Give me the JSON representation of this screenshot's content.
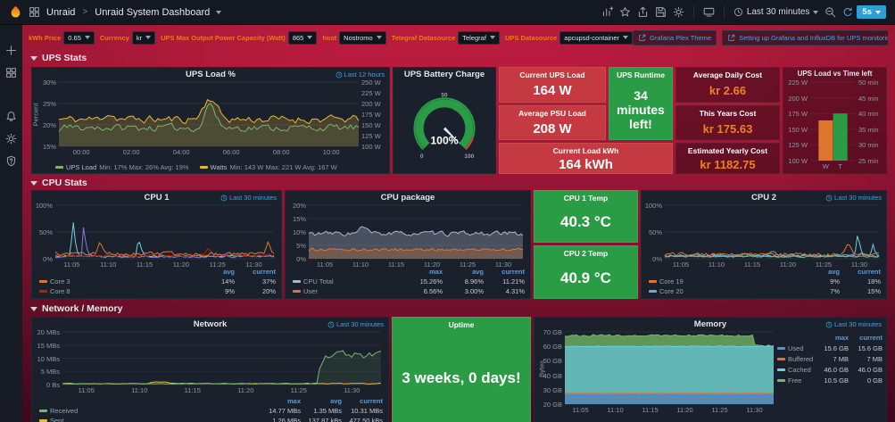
{
  "topbar": {
    "breadcrumb_folder": "Unraid",
    "separator": ">",
    "breadcrumb_title": "Unraid System Dashboard",
    "time_range": "Last 30 minutes",
    "refresh_interval": "5s"
  },
  "variables": [
    {
      "label": "kWh Price",
      "value": "0.65"
    },
    {
      "label": "Currency",
      "value": "kr"
    },
    {
      "label": "UPS Max Output Power Capacity (Watt)",
      "value": "865"
    },
    {
      "label": "host",
      "value": "Nostromo"
    },
    {
      "label": "Telegraf Datasource",
      "value": "Telegraf"
    },
    {
      "label": "UPS Datasource",
      "value": "apcupsd-container"
    }
  ],
  "links": [
    {
      "label": "Grafana Plex Theme"
    },
    {
      "label": "Setting up Grafana and InfluxDB for UPS monitoring on unRAID"
    }
  ],
  "rows": [
    {
      "title": "UPS Stats"
    },
    {
      "title": "CPU Stats"
    },
    {
      "title": "Network / Memory"
    }
  ],
  "stats": {
    "current_ups_load": {
      "title": "Current UPS Load",
      "value": "164 W"
    },
    "average_psu_load": {
      "title": "Average PSU Load",
      "value": "208 W"
    },
    "current_load_kwh": {
      "title": "Current Load kWh",
      "value": "164 kWh"
    },
    "ups_runtime": {
      "title": "UPS Runtime",
      "value": "34 minutes left!"
    },
    "average_daily_cost": {
      "title": "Average Daily Cost",
      "value": "kr 2.66"
    },
    "this_years_cost": {
      "title": "This Years Cost",
      "value": "kr 175.63"
    },
    "estimated_yearly_cost": {
      "title": "Estimated Yearly Cost",
      "value": "kr 1182.75"
    },
    "cpu1_temp": {
      "title": "CPU 1 Temp",
      "value": "40.3 °C"
    },
    "cpu2_temp": {
      "title": "CPU 2 Temp",
      "value": "40.9 °C"
    },
    "uptime": {
      "title": "Uptime",
      "value": "3 weeks, 0 days!"
    }
  },
  "chart_data": [
    {
      "id": "ups-load",
      "type": "line",
      "title": "UPS Load %",
      "time_override": "Last 12 hours",
      "ylabel": "Percent",
      "y_left_ticks": [
        "30%",
        "25%",
        "20%",
        "15%"
      ],
      "y_right_ticks": [
        "250 W",
        "225 W",
        "200 W",
        "175 W",
        "150 W",
        "125 W",
        "100 W"
      ],
      "x_ticks": [
        "00:00",
        "02:00",
        "04:00",
        "06:00",
        "08:00",
        "10:00"
      ],
      "legend_style": "inline",
      "series": [
        {
          "name": "UPS Load",
          "color": "#7eb26d",
          "stats": "Min: 17% Max: 26% Avg: 19%"
        },
        {
          "name": "Watts",
          "color": "#eab839",
          "stats": "Min: 143 W Max: 221 W Avg: 167 W"
        }
      ]
    },
    {
      "id": "ups-gauge",
      "type": "gauge",
      "title": "UPS Battery Charge",
      "value": "100%",
      "ticks": [
        "0",
        "50",
        "100"
      ],
      "value_color": "#2a9c46"
    },
    {
      "id": "ups-bars",
      "type": "bar",
      "title": "UPS Load vs Time left",
      "y_left_ticks": [
        "225 W",
        "200 W",
        "175 W",
        "150 W",
        "125 W",
        "100 W"
      ],
      "y_right_ticks": [
        "50 min",
        "45 min",
        "40 min",
        "35 min",
        "30 min",
        "25 min"
      ],
      "bars": [
        {
          "label": "W",
          "value": 164,
          "unit": "W",
          "axis_min": 100,
          "axis_max": 225,
          "color": "#e0752d"
        },
        {
          "label": "T",
          "value": 40,
          "unit": "min",
          "axis_min": 25,
          "axis_max": 50,
          "color": "#2a9c46"
        }
      ]
    },
    {
      "id": "cpu1",
      "type": "line",
      "title": "CPU 1",
      "time_override": "Last 30 minutes",
      "y_left_ticks": [
        "100%",
        "50%",
        "0%"
      ],
      "x_ticks": [
        "11:05",
        "11:10",
        "11:15",
        "11:20",
        "11:25",
        "11:30"
      ],
      "legend_cols": [
        "avg",
        "current"
      ],
      "series": [
        {
          "name": "Core 3",
          "color": "#e0752d",
          "values": [
            "14%",
            "37%"
          ]
        },
        {
          "name": "Core 8",
          "color": "#bf1b00",
          "values": [
            "9%",
            "20%"
          ]
        }
      ]
    },
    {
      "id": "cpu-package",
      "type": "line",
      "title": "CPU package",
      "y_left_ticks": [
        "20%",
        "15%",
        "10%",
        "5%",
        "0%"
      ],
      "x_ticks": [
        "11:05",
        "11:10",
        "11:15",
        "11:20",
        "11:25",
        "11:30"
      ],
      "legend_cols": [
        "max",
        "avg",
        "current"
      ],
      "series": [
        {
          "name": "CPU Total",
          "color": "#aeb6cc",
          "values": [
            "15.26%",
            "8.96%",
            "11.21%"
          ]
        },
        {
          "name": "User",
          "color": "#e0752d",
          "values": [
            "6.56%",
            "3.00%",
            "4.31%"
          ]
        }
      ]
    },
    {
      "id": "cpu2",
      "type": "line",
      "title": "CPU 2",
      "time_override": "Last 30 minutes",
      "y_left_ticks": [
        "100%",
        "50%",
        "0%"
      ],
      "x_ticks": [
        "11:05",
        "11:10",
        "11:15",
        "11:20",
        "11:25",
        "11:30"
      ],
      "legend_cols": [
        "avg",
        "current"
      ],
      "series": [
        {
          "name": "Core 19",
          "color": "#e0752d",
          "values": [
            "9%",
            "18%"
          ]
        },
        {
          "name": "Core 20",
          "color": "#64b0c8",
          "values": [
            "7%",
            "15%"
          ]
        }
      ]
    },
    {
      "id": "network",
      "type": "line",
      "title": "Network",
      "time_override": "Last 30 minutes",
      "y_left_ticks": [
        "20 MBs",
        "15 MBs",
        "10 MBs",
        "5 MBs",
        "0 Bs"
      ],
      "x_ticks": [
        "11:05",
        "11:10",
        "11:15",
        "11:20",
        "11:25",
        "11:30"
      ],
      "legend_cols": [
        "max",
        "avg",
        "current"
      ],
      "series": [
        {
          "name": "Received",
          "color": "#7eb26d",
          "values": [
            "14.77 MBs",
            "1.35 MBs",
            "10.31 MBs"
          ]
        },
        {
          "name": "Sent",
          "color": "#eab839",
          "values": [
            "1.26 MBs",
            "137.87 kBs",
            "477.50 kBs"
          ]
        }
      ]
    },
    {
      "id": "memory",
      "type": "area",
      "title": "Memory",
      "time_override": "Last 30 minutes",
      "ylabel": "Bytes",
      "y_left_ticks": [
        "70 GB",
        "60 GB",
        "50 GB",
        "40 GB",
        "30 GB",
        "20 GB"
      ],
      "x_ticks": [
        "11:05",
        "11:10",
        "11:15",
        "11:20",
        "11:25",
        "11:30"
      ],
      "legend_cols": [
        "max",
        "current"
      ],
      "legend_position": "right",
      "series": [
        {
          "name": "Used",
          "color": "#5195ce",
          "values": [
            "15.6 GB",
            "15.6 GB"
          ]
        },
        {
          "name": "Buffered",
          "color": "#e0752d",
          "values": [
            "7 MB",
            "7 MB"
          ]
        },
        {
          "name": "Cached",
          "color": "#6ed0e0",
          "values": [
            "46.0 GB",
            "46.0 GB"
          ]
        },
        {
          "name": "Free",
          "color": "#7eb26d",
          "values": [
            "10.5 GB",
            "0 GB"
          ]
        }
      ]
    }
  ],
  "colors": {
    "stat_red": "#c43a40",
    "stat_green": "#2a9c46",
    "cost_orange": "#ec8126",
    "variable_label": "#eb7b18",
    "link_blue": "#38a7e8"
  }
}
